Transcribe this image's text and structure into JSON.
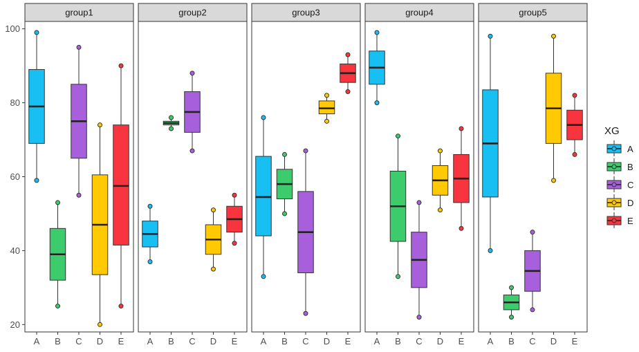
{
  "chart_data": {
    "type": "boxplot",
    "facets": [
      "group1",
      "group2",
      "group3",
      "group4",
      "group5"
    ],
    "categories": [
      "A",
      "B",
      "C",
      "D",
      "E"
    ],
    "ylim": [
      18,
      102
    ],
    "yticks": [
      20,
      40,
      60,
      80,
      100
    ],
    "legend": {
      "title": "XG",
      "entries": [
        "A",
        "B",
        "C",
        "D",
        "E"
      ],
      "placement": "right"
    },
    "colors": {
      "A": "#18BFF3",
      "B": "#3DCC6C",
      "C": "#A85FDC",
      "D": "#FFCA04",
      "E": "#F8343F"
    },
    "series": [
      {
        "facet": "group1",
        "boxes": [
          {
            "category": "A",
            "min": 59,
            "q1": 69,
            "median": 79,
            "q3": 89,
            "max": 99
          },
          {
            "category": "B",
            "min": 25,
            "q1": 32,
            "median": 39,
            "q3": 46,
            "max": 53
          },
          {
            "category": "C",
            "min": 55,
            "q1": 65,
            "median": 75,
            "q3": 85,
            "max": 95
          },
          {
            "category": "D",
            "min": 20,
            "q1": 33.5,
            "median": 47,
            "q3": 60.5,
            "max": 74
          },
          {
            "category": "E",
            "min": 25,
            "q1": 41.5,
            "median": 57.5,
            "q3": 74,
            "max": 90
          }
        ]
      },
      {
        "facet": "group2",
        "boxes": [
          {
            "category": "A",
            "min": 37,
            "q1": 41,
            "median": 44.5,
            "q3": 48,
            "max": 52
          },
          {
            "category": "B",
            "min": 73,
            "q1": 74,
            "median": 74.5,
            "q3": 75,
            "max": 76
          },
          {
            "category": "C",
            "min": 67,
            "q1": 72,
            "median": 77.5,
            "q3": 83,
            "max": 88
          },
          {
            "category": "D",
            "min": 35,
            "q1": 39,
            "median": 43,
            "q3": 47,
            "max": 51
          },
          {
            "category": "E",
            "min": 42,
            "q1": 45,
            "median": 48.5,
            "q3": 52,
            "max": 55
          }
        ]
      },
      {
        "facet": "group3",
        "boxes": [
          {
            "category": "A",
            "min": 33,
            "q1": 44,
            "median": 54.5,
            "q3": 65.5,
            "max": 76
          },
          {
            "category": "B",
            "min": 50,
            "q1": 54,
            "median": 58,
            "q3": 62,
            "max": 66
          },
          {
            "category": "C",
            "min": 23,
            "q1": 34,
            "median": 45,
            "q3": 56,
            "max": 67
          },
          {
            "category": "D",
            "min": 75,
            "q1": 77,
            "median": 78.5,
            "q3": 80.5,
            "max": 82
          },
          {
            "category": "E",
            "min": 83,
            "q1": 85.5,
            "median": 88,
            "q3": 90.5,
            "max": 93
          }
        ]
      },
      {
        "facet": "group4",
        "boxes": [
          {
            "category": "A",
            "min": 80,
            "q1": 85,
            "median": 89.5,
            "q3": 94,
            "max": 99
          },
          {
            "category": "B",
            "min": 33,
            "q1": 42.5,
            "median": 52,
            "q3": 61.5,
            "max": 71
          },
          {
            "category": "C",
            "min": 22,
            "q1": 30,
            "median": 37.5,
            "q3": 45,
            "max": 53
          },
          {
            "category": "D",
            "min": 51,
            "q1": 55,
            "median": 59,
            "q3": 63,
            "max": 67
          },
          {
            "category": "E",
            "min": 46,
            "q1": 53,
            "median": 59.5,
            "q3": 66,
            "max": 73
          }
        ]
      },
      {
        "facet": "group5",
        "boxes": [
          {
            "category": "A",
            "min": 40,
            "q1": 54.5,
            "median": 69,
            "q3": 83.5,
            "max": 98
          },
          {
            "category": "B",
            "min": 22,
            "q1": 24,
            "median": 26,
            "q3": 28,
            "max": 30
          },
          {
            "category": "C",
            "min": 24,
            "q1": 29,
            "median": 34.5,
            "q3": 40,
            "max": 45
          },
          {
            "category": "D",
            "min": 59,
            "q1": 69,
            "median": 78.5,
            "q3": 88,
            "max": 98
          },
          {
            "category": "E",
            "min": 66,
            "q1": 70,
            "median": 74,
            "q3": 78,
            "max": 82
          }
        ]
      }
    ]
  }
}
